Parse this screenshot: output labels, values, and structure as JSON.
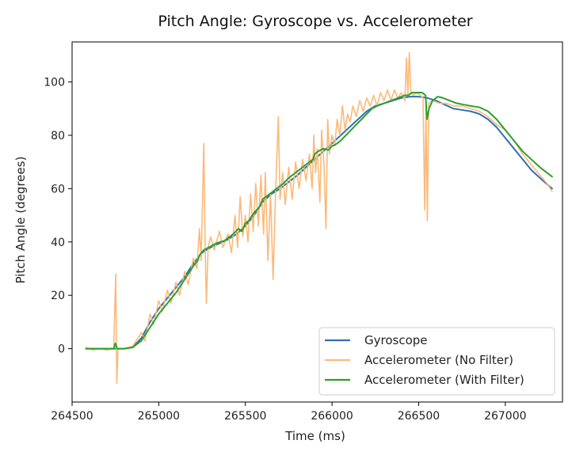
{
  "chart_data": {
    "type": "line",
    "title": "Pitch Angle: Gyroscope vs. Accelerometer",
    "xlabel": "Time (ms)",
    "ylabel": "Pitch Angle (degrees)",
    "xlim": [
      264500,
      267330
    ],
    "ylim": [
      -20,
      115
    ],
    "xticks": [
      264500,
      265000,
      265500,
      266000,
      266500,
      267000
    ],
    "yticks": [
      0,
      20,
      40,
      60,
      80,
      100
    ],
    "grid": false,
    "legend_position": "lower-right",
    "series": [
      {
        "name": "Gyroscope",
        "color": "#2f70b2",
        "points": [
          [
            264580,
            0
          ],
          [
            264750,
            0
          ],
          [
            264800,
            0
          ],
          [
            264850,
            0.5
          ],
          [
            264900,
            4
          ],
          [
            264950,
            10
          ],
          [
            265000,
            15
          ],
          [
            265050,
            19
          ],
          [
            265100,
            23
          ],
          [
            265150,
            27
          ],
          [
            265200,
            32
          ],
          [
            265250,
            36
          ],
          [
            265300,
            38
          ],
          [
            265350,
            39.5
          ],
          [
            265400,
            41
          ],
          [
            265450,
            43
          ],
          [
            265500,
            46
          ],
          [
            265550,
            50
          ],
          [
            265600,
            55
          ],
          [
            265650,
            58
          ],
          [
            265700,
            60
          ],
          [
            265750,
            62.5
          ],
          [
            265800,
            65
          ],
          [
            265850,
            68
          ],
          [
            265900,
            71
          ],
          [
            265950,
            74
          ],
          [
            266000,
            77
          ],
          [
            266050,
            80
          ],
          [
            266100,
            83
          ],
          [
            266150,
            86
          ],
          [
            266200,
            89
          ],
          [
            266250,
            91
          ],
          [
            266300,
            92
          ],
          [
            266350,
            93
          ],
          [
            266400,
            94
          ],
          [
            266450,
            94.5
          ],
          [
            266500,
            94.5
          ],
          [
            266550,
            94
          ],
          [
            266600,
            93
          ],
          [
            266650,
            91.5
          ],
          [
            266700,
            90
          ],
          [
            266750,
            89.5
          ],
          [
            266800,
            89
          ],
          [
            266850,
            88
          ],
          [
            266900,
            86
          ],
          [
            266950,
            83
          ],
          [
            267000,
            79
          ],
          [
            267050,
            75
          ],
          [
            267100,
            71
          ],
          [
            267150,
            67
          ],
          [
            267200,
            64
          ],
          [
            267270,
            60
          ]
        ]
      },
      {
        "name": "Accelerometer (No Filter)",
        "color": "#fbb97a",
        "points": [
          [
            264580,
            0.5
          ],
          [
            264620,
            -0.5
          ],
          [
            264660,
            0
          ],
          [
            264700,
            -0.5
          ],
          [
            264740,
            0
          ],
          [
            264752,
            28
          ],
          [
            264758,
            -13
          ],
          [
            264765,
            0
          ],
          [
            264800,
            0
          ],
          [
            264850,
            1
          ],
          [
            264900,
            6
          ],
          [
            264920,
            3
          ],
          [
            264950,
            13
          ],
          [
            264970,
            9
          ],
          [
            265000,
            18
          ],
          [
            265020,
            14
          ],
          [
            265050,
            22
          ],
          [
            265070,
            17
          ],
          [
            265100,
            25
          ],
          [
            265120,
            20
          ],
          [
            265150,
            29
          ],
          [
            265170,
            24
          ],
          [
            265200,
            34
          ],
          [
            265220,
            30
          ],
          [
            265235,
            45
          ],
          [
            265245,
            33
          ],
          [
            265260,
            77
          ],
          [
            265268,
            37
          ],
          [
            265275,
            17
          ],
          [
            265285,
            38
          ],
          [
            265300,
            42
          ],
          [
            265320,
            37
          ],
          [
            265350,
            44
          ],
          [
            265370,
            38
          ],
          [
            265400,
            43
          ],
          [
            265420,
            36
          ],
          [
            265440,
            50
          ],
          [
            265455,
            38
          ],
          [
            265470,
            57
          ],
          [
            265485,
            42
          ],
          [
            265500,
            50
          ],
          [
            265515,
            40
          ],
          [
            265530,
            58
          ],
          [
            265545,
            44
          ],
          [
            265560,
            62
          ],
          [
            265575,
            46
          ],
          [
            265590,
            65
          ],
          [
            265605,
            43
          ],
          [
            265615,
            66
          ],
          [
            265630,
            33
          ],
          [
            265645,
            58
          ],
          [
            265660,
            26
          ],
          [
            265675,
            60
          ],
          [
            265690,
            87
          ],
          [
            265700,
            56
          ],
          [
            265715,
            66
          ],
          [
            265730,
            54
          ],
          [
            265750,
            68
          ],
          [
            265770,
            56
          ],
          [
            265790,
            70
          ],
          [
            265810,
            60
          ],
          [
            265830,
            71
          ],
          [
            265850,
            63
          ],
          [
            265870,
            73
          ],
          [
            265885,
            60
          ],
          [
            265895,
            80
          ],
          [
            265905,
            66
          ],
          [
            265915,
            75
          ],
          [
            265930,
            55
          ],
          [
            265940,
            82
          ],
          [
            265955,
            67
          ],
          [
            265965,
            45
          ],
          [
            265975,
            86
          ],
          [
            265985,
            73
          ],
          [
            266000,
            80
          ],
          [
            266015,
            76
          ],
          [
            266030,
            86
          ],
          [
            266045,
            80
          ],
          [
            266060,
            91
          ],
          [
            266075,
            82
          ],
          [
            266090,
            88
          ],
          [
            266105,
            85
          ],
          [
            266120,
            91
          ],
          [
            266140,
            87
          ],
          [
            266160,
            93
          ],
          [
            266180,
            89
          ],
          [
            266200,
            94
          ],
          [
            266220,
            91
          ],
          [
            266240,
            95
          ],
          [
            266260,
            91
          ],
          [
            266280,
            96
          ],
          [
            266300,
            93
          ],
          [
            266320,
            97
          ],
          [
            266340,
            93
          ],
          [
            266360,
            97
          ],
          [
            266380,
            94
          ],
          [
            266400,
            96
          ],
          [
            266420,
            93
          ],
          [
            266430,
            109
          ],
          [
            266438,
            95
          ],
          [
            266446,
            111
          ],
          [
            266455,
            96
          ],
          [
            266470,
            95
          ],
          [
            266490,
            96
          ],
          [
            266510,
            95
          ],
          [
            266525,
            94
          ],
          [
            266535,
            52
          ],
          [
            266542,
            91
          ],
          [
            266550,
            48
          ],
          [
            266558,
            92
          ],
          [
            266580,
            93
          ],
          [
            266620,
            92
          ],
          [
            266660,
            92
          ],
          [
            266700,
            91
          ],
          [
            266750,
            91
          ],
          [
            266800,
            90
          ],
          [
            266850,
            89
          ],
          [
            266900,
            87
          ],
          [
            266950,
            84
          ],
          [
            267000,
            82
          ],
          [
            267050,
            78
          ],
          [
            267100,
            73
          ],
          [
            267150,
            69
          ],
          [
            267200,
            65
          ],
          [
            267240,
            62
          ],
          [
            267270,
            59
          ]
        ]
      },
      {
        "name": "Accelerometer (With Filter)",
        "color": "#2ca02c",
        "points": [
          [
            264580,
            0
          ],
          [
            264740,
            0
          ],
          [
            264750,
            2
          ],
          [
            264760,
            0
          ],
          [
            264800,
            0
          ],
          [
            264850,
            0.5
          ],
          [
            264900,
            3
          ],
          [
            264950,
            8
          ],
          [
            265000,
            13
          ],
          [
            265050,
            17
          ],
          [
            265100,
            21
          ],
          [
            265150,
            26
          ],
          [
            265200,
            31
          ],
          [
            265225,
            33
          ],
          [
            265235,
            35
          ],
          [
            265260,
            37
          ],
          [
            265290,
            38
          ],
          [
            265330,
            39.5
          ],
          [
            265380,
            40.5
          ],
          [
            265430,
            43
          ],
          [
            265460,
            45
          ],
          [
            265480,
            44
          ],
          [
            265500,
            47
          ],
          [
            265520,
            48
          ],
          [
            265550,
            51
          ],
          [
            265580,
            53
          ],
          [
            265600,
            56
          ],
          [
            265630,
            57.5
          ],
          [
            265660,
            59
          ],
          [
            265690,
            60.5
          ],
          [
            265720,
            62
          ],
          [
            265750,
            64
          ],
          [
            265780,
            65.5
          ],
          [
            265810,
            67
          ],
          [
            265840,
            68.5
          ],
          [
            265870,
            70
          ],
          [
            265890,
            71
          ],
          [
            265900,
            73
          ],
          [
            265920,
            74
          ],
          [
            265950,
            75
          ],
          [
            265980,
            74.5
          ],
          [
            266000,
            76
          ],
          [
            266020,
            76.5
          ],
          [
            266050,
            78
          ],
          [
            266080,
            80
          ],
          [
            266110,
            82
          ],
          [
            266140,
            84
          ],
          [
            266170,
            86
          ],
          [
            266200,
            88
          ],
          [
            266230,
            90
          ],
          [
            266260,
            91
          ],
          [
            266300,
            92
          ],
          [
            266340,
            93
          ],
          [
            266380,
            94
          ],
          [
            266420,
            95
          ],
          [
            266440,
            95
          ],
          [
            266460,
            96
          ],
          [
            266500,
            96
          ],
          [
            266520,
            96
          ],
          [
            266540,
            95
          ],
          [
            266548,
            86
          ],
          [
            266560,
            90
          ],
          [
            266580,
            93
          ],
          [
            266610,
            94.5
          ],
          [
            266640,
            94
          ],
          [
            266680,
            93
          ],
          [
            266720,
            92
          ],
          [
            266760,
            91.5
          ],
          [
            266800,
            91
          ],
          [
            266850,
            90.5
          ],
          [
            266900,
            89
          ],
          [
            266950,
            86
          ],
          [
            267000,
            82
          ],
          [
            267050,
            78
          ],
          [
            267100,
            74
          ],
          [
            267150,
            71
          ],
          [
            267200,
            68
          ],
          [
            267240,
            66
          ],
          [
            267270,
            64.5
          ]
        ]
      }
    ]
  }
}
